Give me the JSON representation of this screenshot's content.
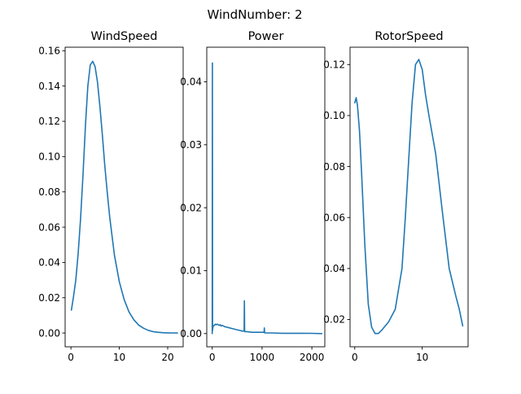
{
  "figure": {
    "suptitle": "WindNumber: 2",
    "line_color": "#1f77b4"
  },
  "chart_data": [
    {
      "type": "line",
      "title": "WindSpeed",
      "xlabel": "",
      "ylabel": "",
      "xlim": [
        -1.2,
        23.2
      ],
      "ylim": [
        -0.0078,
        0.162
      ],
      "xticks": [
        0,
        10,
        20
      ],
      "xtick_labels": [
        "0",
        "10",
        "20"
      ],
      "yticks": [
        0.0,
        0.02,
        0.04,
        0.06,
        0.08,
        0.1,
        0.12,
        0.14,
        0.16
      ],
      "ytick_labels": [
        "0.00",
        "0.02",
        "0.04",
        "0.06",
        "0.08",
        "0.10",
        "0.12",
        "0.14",
        "0.16"
      ],
      "grid": false,
      "series": [
        {
          "x": [
            0.1,
            0.5,
            1.0,
            1.5,
            2.0,
            2.5,
            3.0,
            3.5,
            4.0,
            4.5,
            5.0,
            5.5,
            6.0,
            6.5,
            7.0,
            7.5,
            8.0,
            9.0,
            10.0,
            11.0,
            12.0,
            13.0,
            14.0,
            15.0,
            16.0,
            17.0,
            18.0,
            19.0,
            20.0,
            21.0,
            22.0
          ],
          "y": [
            0.013,
            0.02,
            0.03,
            0.045,
            0.065,
            0.09,
            0.118,
            0.14,
            0.152,
            0.154,
            0.151,
            0.142,
            0.128,
            0.112,
            0.095,
            0.08,
            0.066,
            0.044,
            0.029,
            0.019,
            0.012,
            0.0075,
            0.0045,
            0.0027,
            0.0015,
            0.0008,
            0.0004,
            0.0002,
            0.0001,
            5e-05,
            0.0
          ]
        }
      ]
    },
    {
      "type": "line",
      "title": "Power",
      "xlabel": "",
      "ylabel": "",
      "xlim": [
        -110,
        2260
      ],
      "ylim": [
        -0.0021,
        0.0455
      ],
      "xticks": [
        0,
        1000,
        2000
      ],
      "xtick_labels": [
        "0",
        "1000",
        "2000"
      ],
      "yticks": [
        0.0,
        0.01,
        0.02,
        0.03,
        0.04
      ],
      "ytick_labels": [
        "0.00",
        "0.01",
        "0.02",
        "0.03",
        "0.04"
      ],
      "grid": false,
      "series": [
        {
          "x": [
            0,
            3,
            6,
            10,
            15,
            20,
            40,
            60,
            80,
            100,
            120,
            140,
            160,
            180,
            200,
            250,
            300,
            350,
            400,
            450,
            500,
            550,
            600,
            640,
            645,
            650,
            655,
            660,
            700,
            800,
            900,
            1000,
            1040,
            1045,
            1050,
            1055,
            1060,
            1100,
            1200,
            1400,
            1600,
            1800,
            2000,
            2200
          ],
          "y": [
            0.0,
            0.043,
            0.0005,
            0.0008,
            0.001,
            0.0012,
            0.0013,
            0.0015,
            0.0014,
            0.0015,
            0.0014,
            0.0013,
            0.0014,
            0.0012,
            0.0013,
            0.0011,
            0.001,
            0.0009,
            0.0008,
            0.0007,
            0.0006,
            0.0005,
            0.0004,
            0.0004,
            0.0052,
            0.0004,
            0.0003,
            0.0003,
            0.0003,
            0.0002,
            0.0002,
            0.0002,
            0.0002,
            0.0009,
            0.0002,
            0.0001,
            0.0001,
            0.0001,
            0.0001,
            5e-05,
            5e-05,
            5e-05,
            3e-05,
            0.0
          ]
        }
      ]
    },
    {
      "type": "line",
      "title": "RotorSpeed",
      "xlabel": "",
      "ylabel": "",
      "xlim": [
        -0.7,
        16.8
      ],
      "ylim": [
        0.0093,
        0.1268
      ],
      "xticks": [
        0,
        10
      ],
      "xtick_labels": [
        "0",
        "10"
      ],
      "yticks": [
        0.02,
        0.04,
        0.06,
        0.08,
        0.1,
        0.12
      ],
      "ytick_labels": [
        "0.02",
        "0.04",
        "0.06",
        "0.08",
        "0.10",
        "0.12"
      ],
      "grid": false,
      "series": [
        {
          "x": [
            0.0,
            0.2,
            0.4,
            0.7,
            1.0,
            1.5,
            2.0,
            2.5,
            3.0,
            3.5,
            4.0,
            5.0,
            6.0,
            7.0,
            7.5,
            8.0,
            8.5,
            9.0,
            9.5,
            10.0,
            10.5,
            11.0,
            12.0,
            13.0,
            14.0,
            15.0,
            15.5,
            16.0
          ],
          "y": [
            0.105,
            0.107,
            0.104,
            0.094,
            0.078,
            0.049,
            0.026,
            0.017,
            0.0145,
            0.0145,
            0.0158,
            0.019,
            0.024,
            0.04,
            0.06,
            0.083,
            0.105,
            0.12,
            0.122,
            0.118,
            0.108,
            0.1,
            0.085,
            0.062,
            0.04,
            0.029,
            0.024,
            0.0175
          ]
        }
      ]
    }
  ]
}
